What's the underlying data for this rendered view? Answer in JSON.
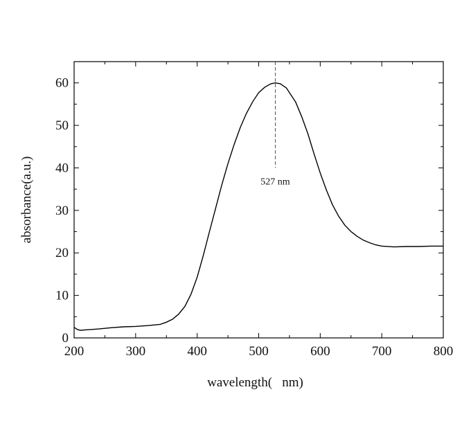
{
  "chart_data": {
    "type": "line",
    "title": "",
    "xlabel": "wavelength(   nm)",
    "ylabel": "absorbance(a.u.)",
    "xlim": [
      200,
      800
    ],
    "ylim": [
      0,
      65
    ],
    "x_ticks": [
      200,
      300,
      400,
      500,
      600,
      700,
      800
    ],
    "y_ticks": [
      0,
      10,
      20,
      30,
      40,
      50,
      60
    ],
    "grid": false,
    "legend": "none",
    "line_color": "#000000",
    "series": [
      {
        "x": [
          200,
          205,
          210,
          220,
          240,
          260,
          280,
          300,
          320,
          340,
          350,
          360,
          370,
          380,
          390,
          400,
          410,
          420,
          430,
          440,
          450,
          460,
          470,
          480,
          490,
          500,
          510,
          520,
          527,
          535,
          545,
          560,
          570,
          580,
          590,
          600,
          610,
          620,
          630,
          640,
          650,
          660,
          670,
          680,
          690,
          700,
          720,
          740,
          760,
          780,
          800
        ],
        "values": [
          2.5,
          2.0,
          1.8,
          1.9,
          2.1,
          2.4,
          2.6,
          2.7,
          2.9,
          3.2,
          3.7,
          4.4,
          5.6,
          7.4,
          10.3,
          14.3,
          19.4,
          25.0,
          30.5,
          36.0,
          41.0,
          45.5,
          49.5,
          52.8,
          55.5,
          57.7,
          59.0,
          59.8,
          60.0,
          59.8,
          58.8,
          55.5,
          52.0,
          48.0,
          43.3,
          38.8,
          34.8,
          31.3,
          28.6,
          26.5,
          25.0,
          23.9,
          23.0,
          22.4,
          21.9,
          21.6,
          21.4,
          21.5,
          21.5,
          21.6,
          21.6
        ]
      }
    ],
    "annotations": [
      {
        "text": "527 nm",
        "x": 527,
        "y_from": 40,
        "y_to": 65,
        "style": "dashed"
      }
    ]
  }
}
